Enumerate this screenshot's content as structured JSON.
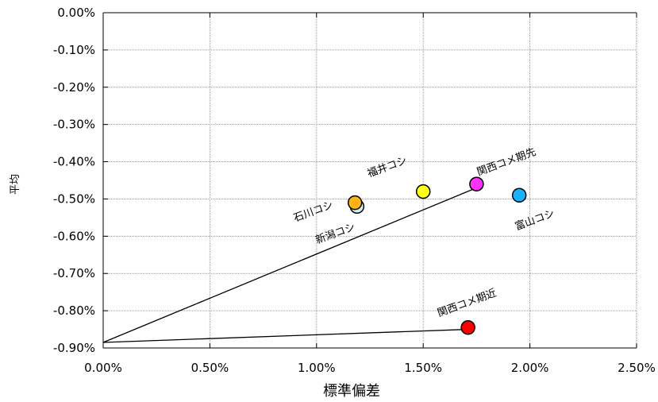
{
  "chart_data": {
    "type": "scatter",
    "title": "",
    "xlabel": "標準偏差",
    "ylabel": "平均",
    "xlim": [
      0.0,
      0.025
    ],
    "ylim": [
      -0.009,
      0.0
    ],
    "xticks": [
      0.0,
      0.005,
      0.01,
      0.015,
      0.02,
      0.025
    ],
    "xtick_labels": [
      "0.00%",
      "0.50%",
      "1.00%",
      "1.50%",
      "2.00%",
      "2.50%"
    ],
    "yticks": [
      0.0,
      -0.001,
      -0.002,
      -0.003,
      -0.004,
      -0.005,
      -0.006,
      -0.007,
      -0.008,
      -0.009
    ],
    "ytick_labels": [
      "0.00%",
      "-0.10%",
      "-0.20%",
      "-0.30%",
      "-0.40%",
      "-0.50%",
      "-0.60%",
      "-0.70%",
      "-0.80%",
      "-0.90%"
    ],
    "grid": true,
    "legend": false,
    "points": [
      {
        "label": "新潟コシ",
        "x": 0.0119,
        "y": -0.0052,
        "color": "#ccf2f2"
      },
      {
        "label": "石川コシ",
        "x": 0.0118,
        "y": -0.0051,
        "color": "#ffb31a"
      },
      {
        "label": "福井コシ",
        "x": 0.015,
        "y": -0.0048,
        "color": "#ffff1a"
      },
      {
        "label": "関西コメ期先",
        "x": 0.0175,
        "y": -0.0046,
        "color": "#ff33ff"
      },
      {
        "label": "富山コシ",
        "x": 0.0195,
        "y": -0.0049,
        "color": "#1ab2ff"
      },
      {
        "label": "関西コメ期近",
        "x": 0.0171,
        "y": -0.00845,
        "color": "#ff0000"
      }
    ],
    "lines": [
      {
        "from": {
          "x": 0.0,
          "y": -0.00885
        },
        "to": {
          "x": 0.0175,
          "y": -0.0047
        }
      },
      {
        "from": {
          "x": 0.0,
          "y": -0.00885
        },
        "to": {
          "x": 0.0171,
          "y": -0.0085
        }
      }
    ]
  }
}
